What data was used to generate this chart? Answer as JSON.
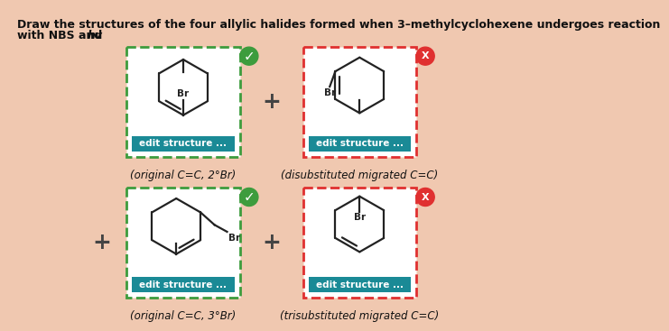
{
  "bg_color": "#f0c8b0",
  "title_line1": "Draw the structures of the four allylic halides formed when 3–methylcyclohexene undergoes reaction",
  "title_line2_normal": "with NBS and ",
  "title_line2_italic": "hv",
  "title_line2_end": ".",
  "box1_label": "(original C=C, 2°Br)",
  "box2_label": "(disubstituted migrated C=C)",
  "box3_label": "(original C=C, 3°Br)",
  "box4_label": "(trisubstituted migrated C=C)",
  "edit_text": "edit structure ...",
  "edit_bg": "#1a8a96",
  "edit_fg": "#ffffff",
  "green_border": "#3d9c3d",
  "red_border": "#e03030",
  "plus_color": "#444444",
  "check_color": "#3d9c3d",
  "x_color": "#e03030",
  "mol_color": "#222222",
  "box_bg": "#ffffff"
}
